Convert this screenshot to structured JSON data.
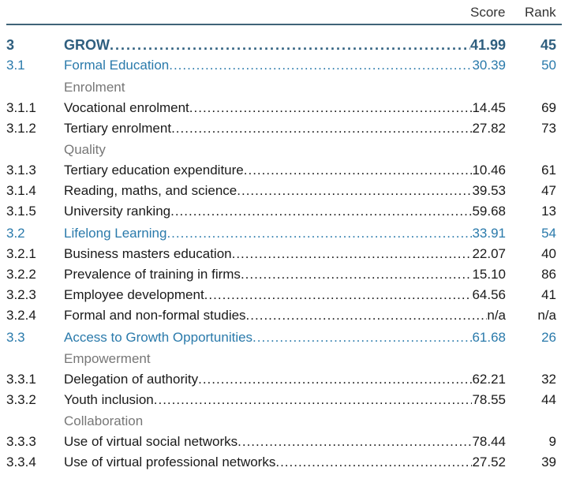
{
  "header": {
    "score": "Score",
    "rank": "Rank"
  },
  "colors": {
    "pillar": "#2f5f7f",
    "sub_pillar": "#2a7aab",
    "group": "#777777",
    "rule": "#3f6478"
  },
  "rows": [
    {
      "type": "pillar",
      "num": "3",
      "label": "GROW",
      "score": "41.99",
      "rank": "45"
    },
    {
      "type": "sub",
      "num": "3.1",
      "label": "Formal Education",
      "score": "30.39",
      "rank": "50"
    },
    {
      "type": "group",
      "label": "Enrolment"
    },
    {
      "type": "item",
      "num": "3.1.1",
      "label": "Vocational enrolment",
      "score": "14.45",
      "rank": "69"
    },
    {
      "type": "item",
      "num": "3.1.2",
      "label": "Tertiary enrolment",
      "score": "27.82",
      "rank": "73"
    },
    {
      "type": "group",
      "label": "Quality"
    },
    {
      "type": "item",
      "num": "3.1.3",
      "label": "Tertiary education expenditure",
      "score": "10.46",
      "rank": "61"
    },
    {
      "type": "item",
      "num": "3.1.4",
      "label": "Reading, maths, and science",
      "score": "39.53",
      "rank": "47"
    },
    {
      "type": "item",
      "num": "3.1.5",
      "label": "University ranking",
      "score": "59.68",
      "rank": "13"
    },
    {
      "type": "sub",
      "num": "3.2",
      "label": "Lifelong Learning",
      "score": "33.91",
      "rank": "54"
    },
    {
      "type": "item",
      "num": "3.2.1",
      "label": "Business masters education",
      "score": "22.07",
      "rank": "40"
    },
    {
      "type": "item",
      "num": "3.2.2",
      "label": "Prevalence of training in firms",
      "score": "15.10",
      "rank": "86"
    },
    {
      "type": "item",
      "num": "3.2.3",
      "label": "Employee development",
      "score": "64.56",
      "rank": "41"
    },
    {
      "type": "item",
      "num": "3.2.4",
      "label": "Formal and non-formal studies",
      "score": "n/a",
      "rank": "n/a"
    },
    {
      "type": "sub",
      "num": "3.3",
      "label": "Access to Growth Opportunities",
      "score": "61.68",
      "rank": "26"
    },
    {
      "type": "group",
      "label": "Empowerment"
    },
    {
      "type": "item",
      "num": "3.3.1",
      "label": "Delegation of authority",
      "score": "62.21",
      "rank": "32"
    },
    {
      "type": "item",
      "num": "3.3.2",
      "label": "Youth inclusion",
      "score": "78.55",
      "rank": "44"
    },
    {
      "type": "group",
      "label": "Collaboration"
    },
    {
      "type": "item",
      "num": "3.3.3",
      "label": "Use of virtual social networks",
      "score": "78.44",
      "rank": "9"
    },
    {
      "type": "item",
      "num": "3.3.4",
      "label": "Use of virtual professional networks",
      "score": "27.52",
      "rank": "39"
    }
  ]
}
